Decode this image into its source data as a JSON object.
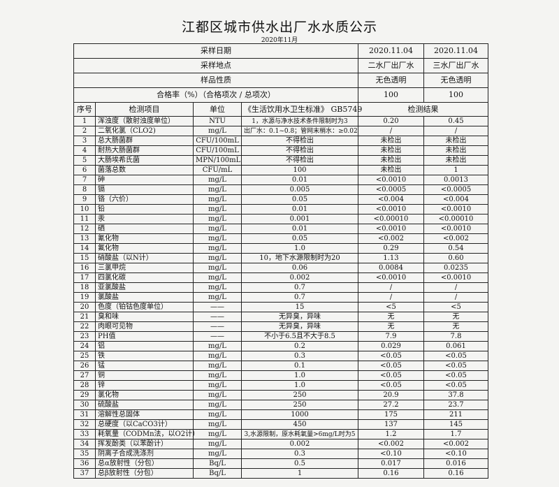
{
  "title": "江都区城市供水出厂水水质公示",
  "subtitle": "2020年11月",
  "summary": [
    {
      "label": "采样日期",
      "a": "2020.11.04",
      "b": "2020.11.04"
    },
    {
      "label": "采样地点",
      "a": "二水厂出厂水",
      "b": "三水厂出厂水"
    },
    {
      "label": "样品性质",
      "a": "无色透明",
      "b": "无色透明"
    },
    {
      "label": "合格率（%）（合格项次 / 总项次）",
      "a": "100",
      "b": "100"
    }
  ],
  "headers": {
    "seq": "序号",
    "item": "检测项目",
    "unit": "单位",
    "standard": "《生活饮用水卫生标准》 GB5749",
    "result": "检测结果"
  },
  "rows": [
    [
      "1",
      "浑浊度（散射浊度单位）",
      "NTU",
      "1，水源与净水技术条件限制时为3",
      "0.20",
      "0.45"
    ],
    [
      "2",
      "二氧化氯（CLO2)",
      "mg/L",
      "出厂水：0.1~0.8；管网末梢水：≥0.02",
      "/",
      "/"
    ],
    [
      "3",
      "总大肠菌群",
      "CFU/100mL",
      "不得检出",
      "未检出",
      "未检出"
    ],
    [
      "4",
      "耐热大肠菌群",
      "CFU/100mL",
      "不得检出",
      "未检出",
      "未检出"
    ],
    [
      "5",
      "大肠埃希氏菌",
      "MPN/100mL",
      "不得检出",
      "未检出",
      "未检出"
    ],
    [
      "6",
      "菌落总数",
      "CFU/mL",
      "100",
      "未检出",
      "1"
    ],
    [
      "7",
      "砷",
      "mg/L",
      "0.01",
      "<0.0010",
      "0.0013"
    ],
    [
      "8",
      "镉",
      "mg/L",
      "0.005",
      "<0.0005",
      "<0.0005"
    ],
    [
      "9",
      "铬（六价）",
      "mg/L",
      "0.05",
      "<0.004",
      "<0.004"
    ],
    [
      "10",
      "铅",
      "mg/L",
      "0.01",
      "<0.0010",
      "<0.0010"
    ],
    [
      "11",
      "汞",
      "mg/L",
      "0.001",
      "<0.00010",
      "<0.00010"
    ],
    [
      "12",
      "硒",
      "mg/L",
      "0.01",
      "<0.0010",
      "<0.0010"
    ],
    [
      "13",
      "氰化物",
      "mg/L",
      "0.05",
      "<0.002",
      "<0.002"
    ],
    [
      "14",
      "氟化物",
      "mg/L",
      "1.0",
      "0.29",
      "0.54"
    ],
    [
      "15",
      "硝酸盐（以N计）",
      "mg/L",
      "10，地下水源限制时为20",
      "1.13",
      "0.60"
    ],
    [
      "16",
      "三氯甲烷",
      "mg/L",
      "0.06",
      "0.0084",
      "0.0235"
    ],
    [
      "17",
      "四氯化碳",
      "mg/L",
      "0.002",
      "<0.0010",
      "<0.0010"
    ],
    [
      "18",
      "亚氯酸盐",
      "mg/L",
      "0.7",
      "/",
      "/"
    ],
    [
      "19",
      "氯酸盐",
      "mg/L",
      "0.7",
      "/",
      "/"
    ],
    [
      "20",
      "色度（铂钴色度单位）",
      "——",
      "15",
      "<5",
      "<5"
    ],
    [
      "21",
      "臭和味",
      "——",
      "无异臭，异味",
      "无",
      "无"
    ],
    [
      "22",
      "肉眼可见物",
      "——",
      "无异臭，异味",
      "无",
      "无"
    ],
    [
      "23",
      "PH值",
      "——",
      "不小于6.5且不大于8.5",
      "7.9",
      "7.8"
    ],
    [
      "24",
      "铝",
      "mg/L",
      "0.2",
      "0.029",
      "0.061"
    ],
    [
      "25",
      "铁",
      "mg/L",
      "0.3",
      "<0.05",
      "<0.05"
    ],
    [
      "26",
      "锰",
      "mg/L",
      "0.1",
      "<0.05",
      "<0.05"
    ],
    [
      "27",
      "铜",
      "mg/L",
      "1.0",
      "<0.05",
      "<0.05"
    ],
    [
      "28",
      "锌",
      "mg/L",
      "1.0",
      "<0.05",
      "<0.05"
    ],
    [
      "29",
      "氯化物",
      "mg/L",
      "250",
      "20.9",
      "37.8"
    ],
    [
      "30",
      "硫酸盐",
      "mg/L",
      "250",
      "27.2",
      "23.7"
    ],
    [
      "31",
      "溶解性总固体",
      "mg/L",
      "1000",
      "175",
      "211"
    ],
    [
      "32",
      "总硬度（以CaCO3计）",
      "mg/L",
      "450",
      "137",
      "145"
    ],
    [
      "33",
      "耗氧量（CODMn法，以O2计）",
      "mg/L",
      "3,水源限制，原水耗氧量>6mg/L时为5",
      "1.2",
      "1.7"
    ],
    [
      "34",
      "挥发酚类（以苯酚计）",
      "mg/L",
      "0.002",
      "<0.002",
      "<0.002"
    ],
    [
      "35",
      "阴离子合成洗涤剂",
      "mg/L",
      "0.3",
      "<0.10",
      "<0.10"
    ],
    [
      "36",
      "总α放射性（分包）",
      "Bq/L",
      "0.5",
      "0.017",
      "0.016"
    ],
    [
      "37",
      "总β放射性（分包）",
      "Bq/L",
      "1",
      "0.16",
      "0.16"
    ]
  ]
}
